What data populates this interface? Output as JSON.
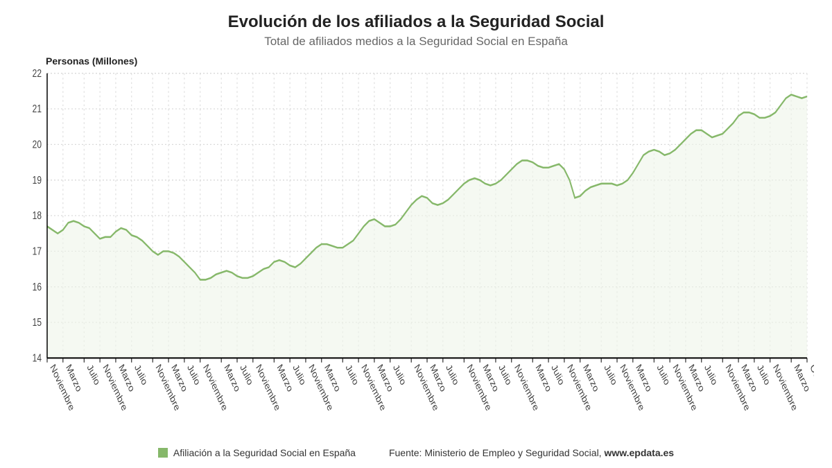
{
  "title": "Evolución de los afiliados a la Seguridad Social",
  "subtitle": "Total de afiliados medios a la Seguridad Social en España",
  "y_axis_title": "Personas (Millones)",
  "legend_label": "Afiliación a la Seguridad Social en España",
  "source_prefix": "Fuente: Ministerio de Empleo y Seguridad Social, ",
  "source_bold": "www.epdata.es",
  "chart": {
    "type": "line",
    "background_color": "#ffffff",
    "grid_color": "#d9d9d9",
    "grid_dash": "2 3",
    "axis_color": "#000000",
    "line_color": "#86b86a",
    "line_width": 2,
    "area_fill": "#eef5e9",
    "area_opacity": 0.6,
    "font_tick_size": 12,
    "font_tick_color": "#444444",
    "ylim": [
      14,
      22
    ],
    "ytick_step": 1,
    "yticks": [
      14,
      15,
      16,
      17,
      18,
      19,
      20,
      21,
      22
    ],
    "x_labels": [
      "Noviembre",
      "Marzo",
      "Julio",
      "Noviembre",
      "Marzo",
      "Julio",
      "Noviembre",
      "Marzo",
      "Julio",
      "Noviembre",
      "Marzo",
      "Julio",
      "Noviembre",
      "Marzo",
      "Julio",
      "Noviembre",
      "Marzo",
      "Julio",
      "Noviembre",
      "Marzo",
      "Julio",
      "Noviembre",
      "Marzo",
      "Julio",
      "Noviembre",
      "Marzo",
      "Julio",
      "Noviembre",
      "Marzo",
      "Julio",
      "Noviembre",
      "Marzo",
      "Julio",
      "Noviembre",
      "Marzo",
      "Julio",
      "Noviembre",
      "Marzo",
      "Julio",
      "Noviembre",
      "Marzo",
      "Julio",
      "Noviembre",
      "Marzo",
      "Octubre"
    ],
    "values": [
      17.7,
      17.6,
      17.5,
      17.6,
      17.8,
      17.85,
      17.8,
      17.7,
      17.65,
      17.5,
      17.35,
      17.4,
      17.4,
      17.55,
      17.65,
      17.6,
      17.45,
      17.4,
      17.3,
      17.15,
      17.0,
      16.9,
      17.0,
      17.0,
      16.95,
      16.85,
      16.7,
      16.55,
      16.4,
      16.2,
      16.2,
      16.25,
      16.35,
      16.4,
      16.45,
      16.4,
      16.3,
      16.25,
      16.25,
      16.3,
      16.4,
      16.5,
      16.55,
      16.7,
      16.75,
      16.7,
      16.6,
      16.55,
      16.65,
      16.8,
      16.95,
      17.1,
      17.2,
      17.2,
      17.15,
      17.1,
      17.1,
      17.2,
      17.3,
      17.5,
      17.7,
      17.85,
      17.9,
      17.8,
      17.7,
      17.7,
      17.75,
      17.9,
      18.1,
      18.3,
      18.45,
      18.55,
      18.5,
      18.35,
      18.3,
      18.35,
      18.45,
      18.6,
      18.75,
      18.9,
      19.0,
      19.05,
      19.0,
      18.9,
      18.85,
      18.9,
      19.0,
      19.15,
      19.3,
      19.45,
      19.55,
      19.55,
      19.5,
      19.4,
      19.35,
      19.35,
      19.4,
      19.45,
      19.3,
      19.0,
      18.5,
      18.55,
      18.7,
      18.8,
      18.85,
      18.9,
      18.9,
      18.9,
      18.85,
      18.9,
      19.0,
      19.2,
      19.45,
      19.7,
      19.8,
      19.85,
      19.8,
      19.7,
      19.75,
      19.85,
      20.0,
      20.15,
      20.3,
      20.4,
      20.4,
      20.3,
      20.2,
      20.25,
      20.3,
      20.45,
      20.6,
      20.8,
      20.9,
      20.9,
      20.85,
      20.75,
      20.75,
      20.8,
      20.9,
      21.1,
      21.3,
      21.4,
      21.35,
      21.3,
      21.35
    ]
  }
}
